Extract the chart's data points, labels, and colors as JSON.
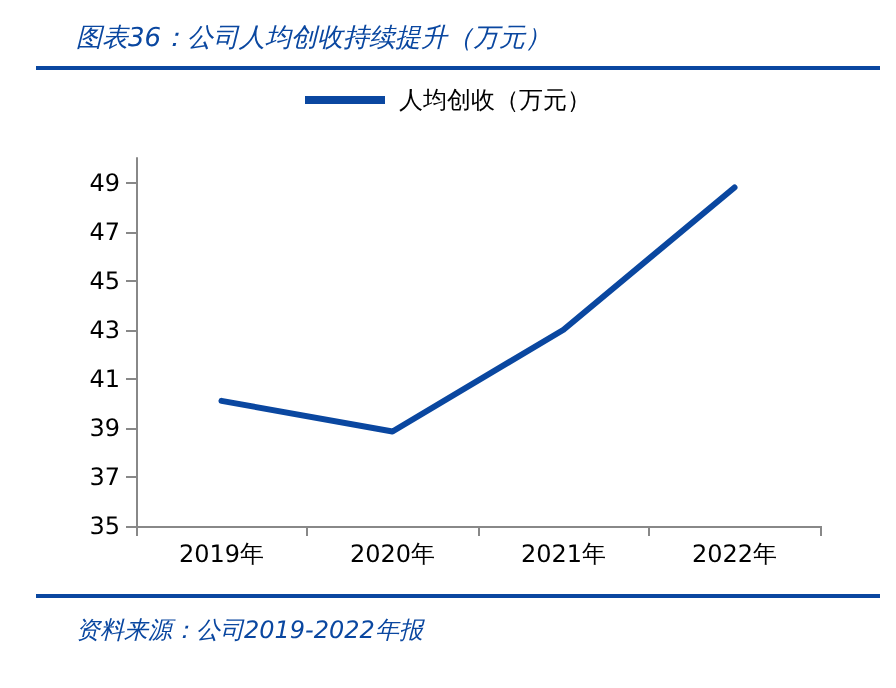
{
  "chart_data": {
    "type": "line",
    "title": "图表36：公司人均创收持续提升（万元）",
    "categories": [
      "2019年",
      "2020年",
      "2021年",
      "2022年"
    ],
    "series": [
      {
        "name": "人均创收（万元）",
        "color": "#0a47a0",
        "values": [
          40.1,
          38.85,
          43.0,
          48.8
        ]
      }
    ],
    "ylim": [
      35,
      50
    ],
    "yticks": [
      35,
      37,
      39,
      41,
      43,
      45,
      47,
      49
    ],
    "grid": false,
    "legend": "top",
    "marker": "none",
    "line_style": "solid",
    "annotations": [
      "资料来源：公司2019-2022年报"
    ]
  }
}
